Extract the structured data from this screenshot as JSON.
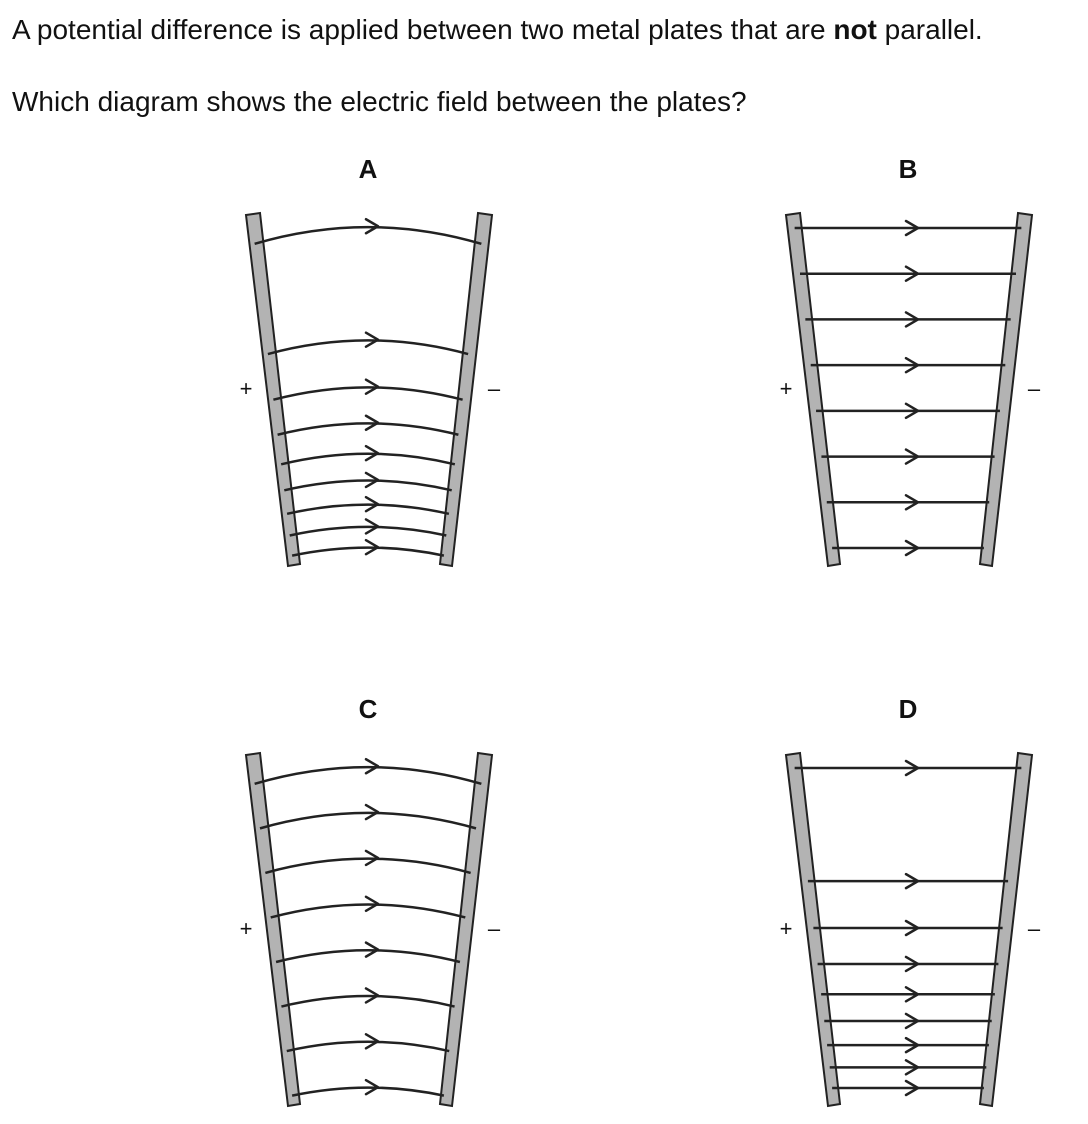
{
  "question": {
    "line1_start": "A potential difference is applied between two metal plates that are ",
    "line1_bold": "not",
    "line1_end": " parallel.",
    "line2": "Which diagram shows the electric field between the plates?"
  },
  "options": [
    {
      "letter": "A",
      "positive_label": "+",
      "negative_label": "–",
      "line_style": "curved",
      "spacing": "converging-downward",
      "line_count": 9
    },
    {
      "letter": "B",
      "positive_label": "+",
      "negative_label": "–",
      "line_style": "straight",
      "spacing": "even",
      "line_count": 8
    },
    {
      "letter": "C",
      "positive_label": "+",
      "negative_label": "–",
      "line_style": "curved",
      "spacing": "even",
      "line_count": 8
    },
    {
      "letter": "D",
      "positive_label": "+",
      "negative_label": "–",
      "line_style": "straight",
      "spacing": "converging-downward",
      "line_count": 9
    }
  ],
  "colors": {
    "plate_fill": "#b3b3b3",
    "line_color": "#222222",
    "text_color": "#111111"
  }
}
